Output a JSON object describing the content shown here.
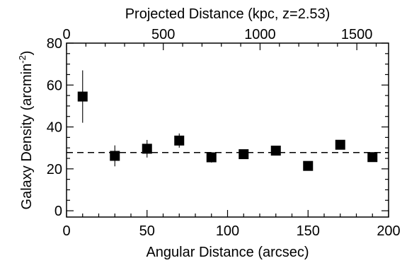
{
  "chart_data": {
    "type": "scatter",
    "xlabel": "Angular Distance (arcsec)",
    "x2label": "Projected Distance (kpc, z=2.53)",
    "ylabel_main": "Galaxy Density (arcmin",
    "ylabel_sup": "-2",
    "ylabel_close": ")",
    "xlim": [
      0,
      200
    ],
    "ylim": [
      -3,
      80
    ],
    "x2lim_kpc": [
      0,
      1664
    ],
    "x_ticks": [
      0,
      50,
      100,
      150,
      200
    ],
    "y_ticks": [
      0,
      20,
      40,
      60,
      80
    ],
    "x2_ticks": [
      0,
      500,
      1000,
      1500
    ],
    "x_minor_step": 10,
    "y_minor_step": 5,
    "x2_minor_step": 100,
    "reference_line": {
      "y": 27.8,
      "style": "dashed"
    },
    "points": [
      {
        "x": 10,
        "y": 54.5,
        "yerr": 12.5
      },
      {
        "x": 30,
        "y": 26.2,
        "yerr": 5.0
      },
      {
        "x": 50,
        "y": 29.6,
        "yerr": 4.2
      },
      {
        "x": 70,
        "y": 33.5,
        "yerr": 3.4
      },
      {
        "x": 90,
        "y": 25.5,
        "yerr": 2.5
      },
      {
        "x": 110,
        "y": 27.0,
        "yerr": 2.2
      },
      {
        "x": 130,
        "y": 28.7,
        "yerr": 2.0
      },
      {
        "x": 150,
        "y": 21.4,
        "yerr": 1.6
      },
      {
        "x": 170,
        "y": 31.5,
        "yerr": 1.6
      },
      {
        "x": 190,
        "y": 25.6,
        "yerr": 1.4
      }
    ],
    "grid": false,
    "marker": "square",
    "color": "#000000"
  }
}
